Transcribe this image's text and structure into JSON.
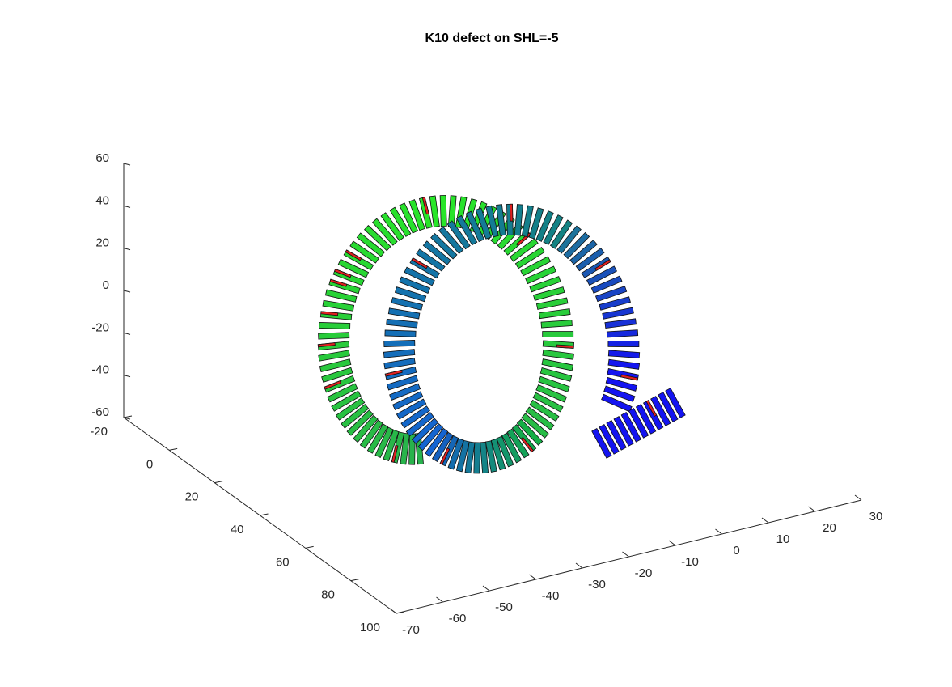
{
  "chart_data": {
    "type": "3d",
    "title": "K10 defect on SHL=-5",
    "xlim": [
      -70,
      30
    ],
    "xticks": [
      -70,
      -60,
      -50,
      -40,
      -30,
      -20,
      -10,
      0,
      10,
      20,
      30
    ],
    "ylim": [
      -20,
      100
    ],
    "yticks": [
      -20,
      0,
      20,
      40,
      60,
      80,
      100
    ],
    "zlim": [
      -60,
      60
    ],
    "zticks": [
      -60,
      -40,
      -20,
      0,
      20,
      40,
      60
    ]
  }
}
